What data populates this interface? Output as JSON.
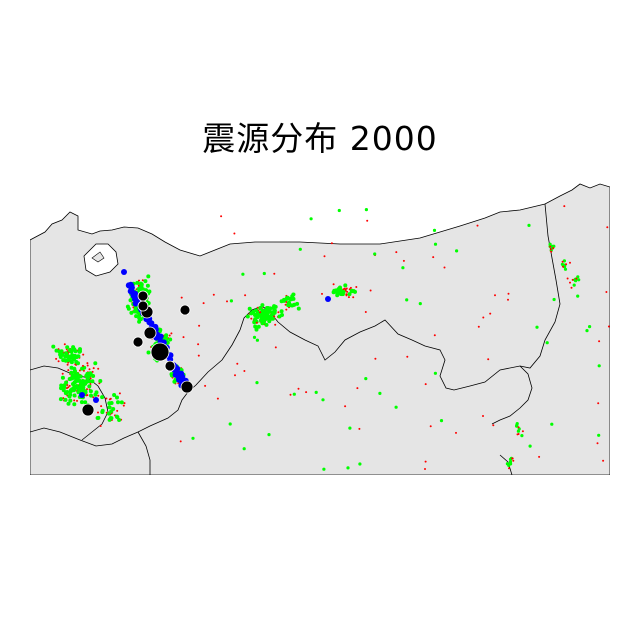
{
  "map": {
    "title": "震源分布 2000"
  },
  "colors": {
    "land": "#e5e5e5",
    "sea": "#ffffff",
    "boundary": "#000000",
    "small_quake": "#ff0000",
    "medium_quake": "#00ff00",
    "large_quake": "#0000ff",
    "major_quake": "#000000"
  }
}
